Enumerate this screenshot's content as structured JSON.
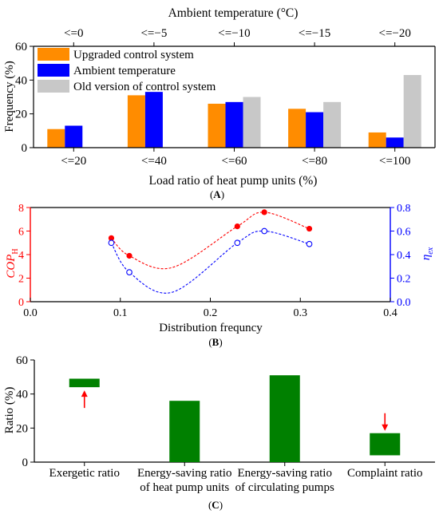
{
  "chart_data": [
    {
      "panel_label": "(A)",
      "type": "bar",
      "top_axis_title": "Ambient temperature (°C)",
      "top_categories": [
        "<=0",
        "<=−5",
        "<=−10",
        "<=−15",
        "<=−20"
      ],
      "categories": [
        "<=20",
        "<=40",
        "<=60",
        "<=80",
        "<=100"
      ],
      "xlabel": "Load ratio of heat pump units (%)",
      "ylabel": "Frequency (%)",
      "ylim": [
        0,
        60
      ],
      "yticks": [
        0,
        20,
        40,
        60
      ],
      "legend_position": "top-left",
      "series": [
        {
          "name": "Upgraded control system",
          "color": "#ff8c00",
          "values": [
            11,
            31,
            26,
            23,
            9
          ]
        },
        {
          "name": "Ambient temperature",
          "color": "#0000ff",
          "values": [
            13,
            33,
            27,
            21,
            6
          ]
        },
        {
          "name": "Old version of control system",
          "color": "#c8c8c8",
          "values": [
            null,
            null,
            30,
            27,
            43
          ]
        }
      ]
    },
    {
      "panel_label": "(B)",
      "type": "scatter",
      "xlabel": "Distribution frequncy",
      "ylabel_left": {
        "main": "COP",
        "sub": "H"
      },
      "ylabel_right": {
        "main": "η",
        "sub": "ex"
      },
      "xlim": [
        0.0,
        0.4
      ],
      "xticks": [
        "0.0",
        "0.1",
        "0.2",
        "0.3",
        "0.4"
      ],
      "ylim_left": [
        0,
        8
      ],
      "yticks_left": [
        "0",
        "2",
        "4",
        "6",
        "8"
      ],
      "ylim_right": [
        0.0,
        0.8
      ],
      "yticks_right": [
        "0.0",
        "0.2",
        "0.4",
        "0.6",
        "0.8"
      ],
      "series": [
        {
          "axis": "left",
          "color": "#ff0000",
          "marker": "filled-circle",
          "line": "dashed-fit",
          "x": [
            0.09,
            0.11,
            0.23,
            0.26,
            0.31
          ],
          "y": [
            5.4,
            3.9,
            6.4,
            7.6,
            6.2
          ]
        },
        {
          "axis": "right",
          "color": "#0000ff",
          "marker": "open-circle",
          "line": "dashed-fit",
          "x": [
            0.09,
            0.11,
            0.23,
            0.26,
            0.31
          ],
          "y": [
            0.5,
            0.25,
            0.5,
            0.6,
            0.49
          ]
        }
      ]
    },
    {
      "panel_label": "(C)",
      "type": "bar",
      "categories": [
        [
          "Exergetic ratio"
        ],
        [
          "Energy-saving ratio",
          "of heat pump units"
        ],
        [
          "Energy-saving ratio",
          "of  circulating pumps"
        ],
        [
          "Complaint ratio"
        ]
      ],
      "ylabel": "Ratio (%)",
      "ylim": [
        0,
        60
      ],
      "yticks": [
        0,
        20,
        40,
        60
      ],
      "color": "#008000",
      "bars": [
        {
          "low": 44,
          "high": 49,
          "arrow": "up",
          "arrow_color": "#ff0000"
        },
        {
          "low": 0,
          "high": 36
        },
        {
          "low": 0,
          "high": 51
        },
        {
          "low": 4,
          "high": 17,
          "arrow": "down",
          "arrow_color": "#ff0000"
        }
      ]
    }
  ]
}
